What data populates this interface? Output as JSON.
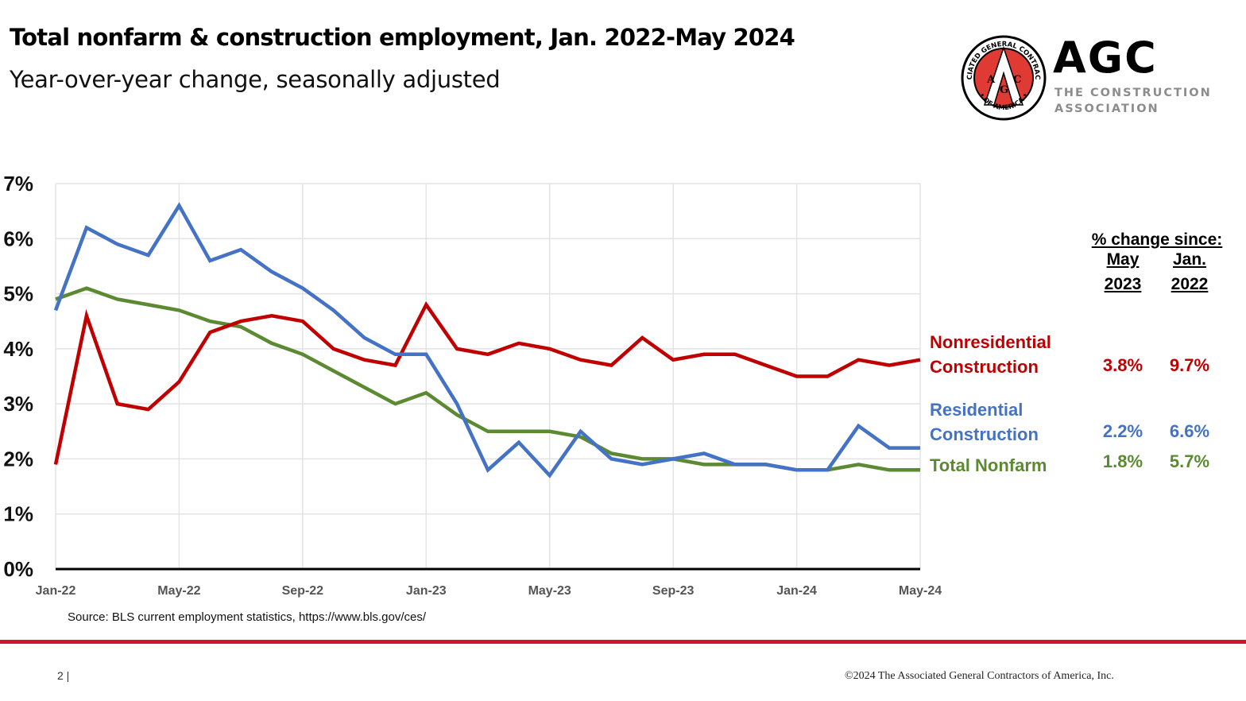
{
  "header": {
    "title": "Total nonfarm & construction employment, Jan. 2022-May 2024",
    "subtitle": "Year-over-year change, seasonally adjusted"
  },
  "logo": {
    "wordmark": "AGC",
    "tagline": "THE CONSTRUCTION\nASSOCIATION",
    "seal_ring_text": "ASSOCIATED GENERAL CONTRACTORS OF AMERICA",
    "seal_letters": [
      "A",
      "G",
      "C"
    ],
    "colors": {
      "seal_red": "#e03a35",
      "ring": "#000000",
      "tagline": "#8c8c8c"
    }
  },
  "summary_table": {
    "heading": "% change since:",
    "columns": [
      {
        "line1": "May",
        "line2": "2023"
      },
      {
        "line1": "Jan.",
        "line2": "2022"
      }
    ],
    "rows": [
      {
        "label_line1": "Nonresidential",
        "label_line2": "Construction",
        "values": [
          "3.8%",
          "9.7%"
        ],
        "color": "#c00000"
      },
      {
        "label_line1": "Residential",
        "label_line2": "Construction",
        "values": [
          "2.2%",
          "6.6%"
        ],
        "color": "#4472c4"
      },
      {
        "label_line1": "Total Nonfarm",
        "label_line2": "",
        "values": [
          "1.8%",
          "5.7%"
        ],
        "color": "#5b8a32"
      }
    ]
  },
  "source": "Source: BLS current employment statistics, https://www.bls.gov/ces/",
  "footer": {
    "page_number": "2 |",
    "copyright": "©2024 The Associated General Contractors of America, Inc.",
    "rule_color": "#d6112e"
  },
  "chart_data": {
    "type": "line",
    "title": "Total nonfarm & construction employment, Jan. 2022-May 2024",
    "subtitle": "Year-over-year change, seasonally adjusted",
    "xlabel": "",
    "ylabel": "",
    "ylim": [
      0,
      7
    ],
    "yticks": [
      "0%",
      "1%",
      "2%",
      "3%",
      "4%",
      "5%",
      "6%",
      "7%"
    ],
    "xtick_labels": [
      "Jan-22",
      "May-22",
      "Sep-22",
      "Jan-23",
      "May-23",
      "Sep-23",
      "Jan-24",
      "May-24"
    ],
    "xtick_every": 4,
    "grid": true,
    "legend": "right (direct labels)",
    "x": [
      "Jan-22",
      "Feb-22",
      "Mar-22",
      "Apr-22",
      "May-22",
      "Jun-22",
      "Jul-22",
      "Aug-22",
      "Sep-22",
      "Oct-22",
      "Nov-22",
      "Dec-22",
      "Jan-23",
      "Feb-23",
      "Mar-23",
      "Apr-23",
      "May-23",
      "Jun-23",
      "Jul-23",
      "Aug-23",
      "Sep-23",
      "Oct-23",
      "Nov-23",
      "Dec-23",
      "Jan-24",
      "Feb-24",
      "Mar-24",
      "Apr-24",
      "May-24"
    ],
    "series": [
      {
        "name": "Nonresidential Construction",
        "color": "#c00000",
        "values": [
          1.9,
          4.6,
          3.0,
          2.9,
          3.4,
          4.3,
          4.5,
          4.6,
          4.5,
          4.0,
          3.8,
          3.7,
          4.8,
          4.0,
          3.9,
          4.1,
          4.0,
          3.8,
          3.7,
          4.2,
          3.8,
          3.9,
          3.9,
          3.7,
          3.5,
          3.5,
          3.8,
          3.7,
          3.8
        ]
      },
      {
        "name": "Residential Construction",
        "color": "#4472c4",
        "values": [
          4.7,
          6.2,
          5.9,
          5.7,
          6.6,
          5.6,
          5.8,
          5.4,
          5.1,
          4.7,
          4.2,
          3.9,
          3.9,
          3.0,
          1.8,
          2.3,
          1.7,
          2.5,
          2.0,
          1.9,
          2.0,
          2.1,
          1.9,
          1.9,
          1.8,
          1.8,
          2.6,
          2.2,
          2.2
        ]
      },
      {
        "name": "Total Nonfarm",
        "color": "#5b8a32",
        "values": [
          4.9,
          5.1,
          4.9,
          4.8,
          4.7,
          4.5,
          4.4,
          4.1,
          3.9,
          3.6,
          3.3,
          3.0,
          3.2,
          2.8,
          2.5,
          2.5,
          2.5,
          2.4,
          2.1,
          2.0,
          2.0,
          1.9,
          1.9,
          1.9,
          1.8,
          1.8,
          1.9,
          1.8,
          1.8
        ]
      }
    ]
  }
}
